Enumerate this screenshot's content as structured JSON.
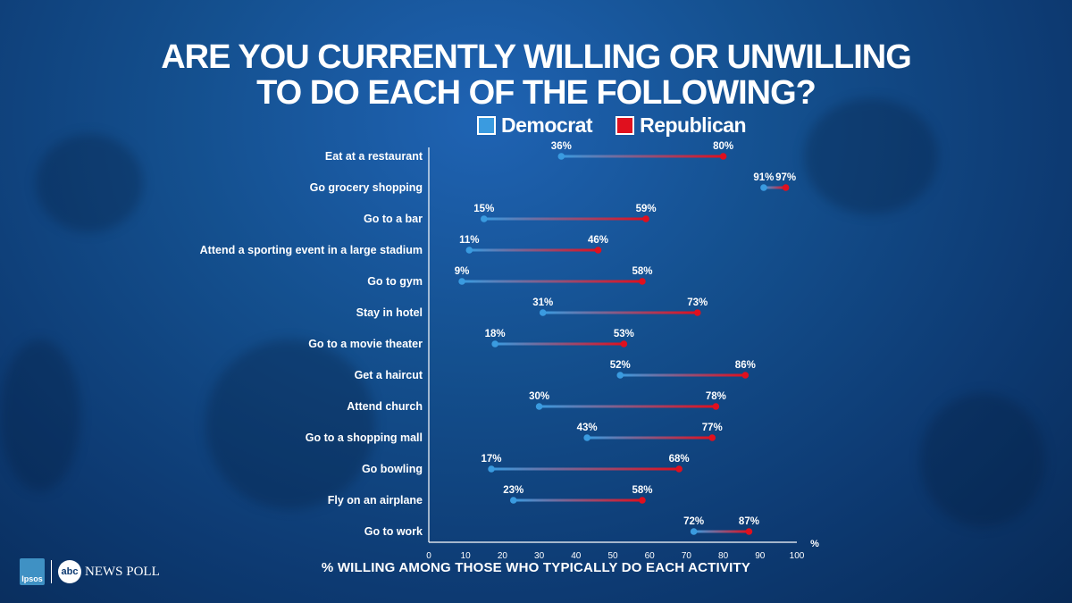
{
  "title_line1": "ARE YOU CURRENTLY WILLING OR UNWILLING",
  "title_line2": "TO DO EACH OF THE FOLLOWING?",
  "footer_text": "% WILLING AMONG THOSE WHO TYPICALLY DO EACH ACTIVITY",
  "logos": {
    "ipsos": "Ipsos",
    "abc": "abc",
    "news": "NEWS POLL"
  },
  "colors": {
    "democrat": "#3a9be0",
    "republican": "#e0101e",
    "background": "#14508f"
  },
  "chart_data": {
    "type": "dumbbell",
    "xlabel": "%",
    "xlim": [
      0,
      100
    ],
    "x_ticks": [
      "0",
      "10",
      "20",
      "30",
      "40",
      "50",
      "60",
      "70",
      "80",
      "90",
      "100"
    ],
    "legend": [
      "Democrat",
      "Republican"
    ],
    "legend_position": "top",
    "categories": [
      "Eat at a restaurant",
      "Go grocery shopping",
      "Go to a bar",
      "Attend a sporting event in a large stadium",
      "Go to gym",
      "Stay in hotel",
      "Go to a movie theater",
      "Get a haircut",
      "Attend church",
      "Go to a shopping mall",
      "Go bowling",
      "Fly on an airplane",
      "Go to work"
    ],
    "series": [
      {
        "name": "Democrat",
        "values": [
          36,
          91,
          15,
          11,
          9,
          31,
          18,
          52,
          30,
          43,
          17,
          23,
          72
        ]
      },
      {
        "name": "Republican",
        "values": [
          80,
          97,
          59,
          46,
          58,
          73,
          53,
          86,
          78,
          77,
          68,
          58,
          87
        ]
      }
    ]
  }
}
